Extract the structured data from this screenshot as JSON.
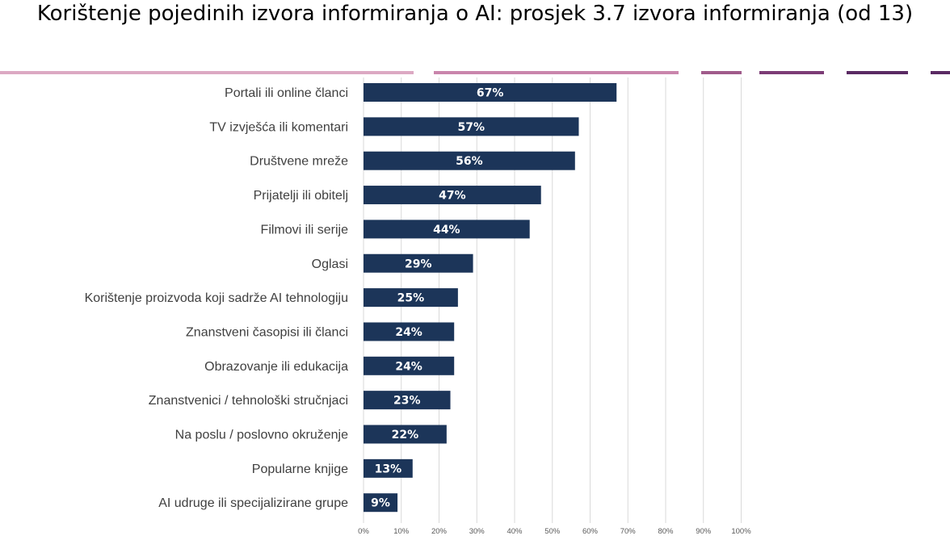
{
  "title": "Korištenje pojedinih izvora informiranja o AI: prosjek 3.7 izvora informiranja (od 13)",
  "colors": {
    "bar": "#1c3559",
    "gridline": "#d9d9d9",
    "decoration": [
      "#dca9c3",
      "#c985ac",
      "#a05b8b",
      "#7c3c75",
      "#5a2a63"
    ]
  },
  "chart_data": {
    "type": "bar",
    "orientation": "horizontal",
    "categories": [
      "Portali ili online članci",
      "TV izvješća ili komentari",
      "Društvene mreže",
      "Prijatelji ili obitelj",
      "Filmovi ili serije",
      "Oglasi",
      "Korištenje proizvoda koji sadrže AI tehnologiju",
      "Znanstveni časopisi ili članci",
      "Obrazovanje ili edukacija",
      "Znanstvenici / tehnološki stručnjaci",
      "Na poslu / poslovno okruženje",
      "Popularne knjige",
      "AI udruge ili specijalizirane grupe"
    ],
    "values": [
      67,
      57,
      56,
      47,
      44,
      29,
      25,
      24,
      24,
      23,
      22,
      13,
      9
    ],
    "data_labels": [
      "67%",
      "57%",
      "56%",
      "47%",
      "44%",
      "29%",
      "25%",
      "24%",
      "24%",
      "23%",
      "22%",
      "13%",
      "9%"
    ],
    "xlim": [
      0,
      100
    ],
    "x_ticks": [
      "0%",
      "10%",
      "20%",
      "30%",
      "40%",
      "50%",
      "60%",
      "70%",
      "80%",
      "90%",
      "100%"
    ],
    "grid": true,
    "legend": "none",
    "xlabel": "",
    "ylabel": ""
  }
}
